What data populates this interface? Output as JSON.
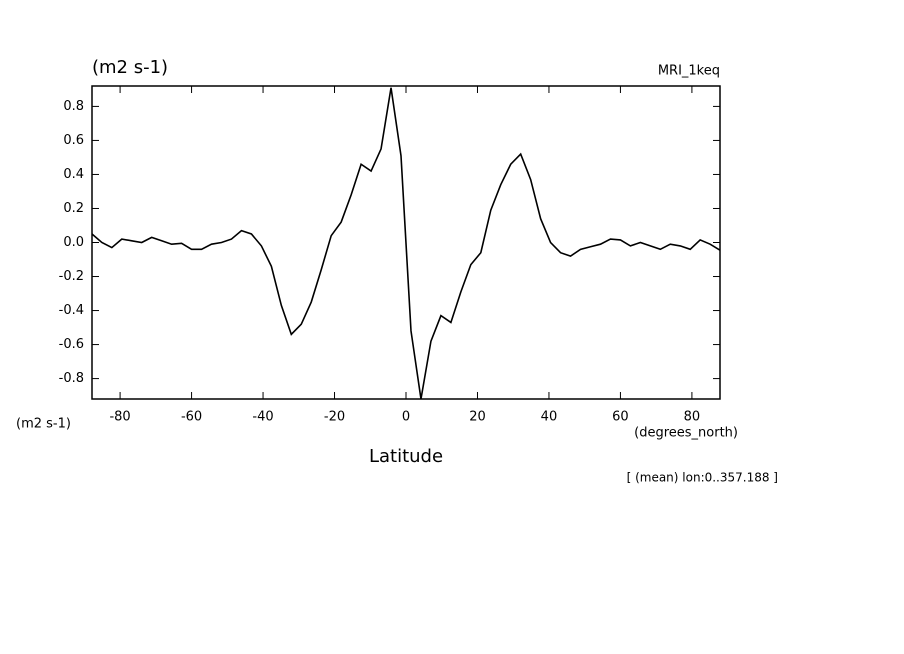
{
  "chart_data": {
    "type": "line",
    "title": "(m2 s-1)",
    "subtitle": "MRI_1keq",
    "y_unit_label": "(m2 s-1)",
    "x_unit_label": "(degrees_north)",
    "xlabel": "Latitude",
    "annotation": "[ (mean) lon:0..357.188 ]",
    "x": [
      -87.86,
      -85.1,
      -82.31,
      -79.53,
      -76.74,
      -73.95,
      -71.16,
      -68.37,
      -65.58,
      -62.79,
      -60.0,
      -57.21,
      -54.42,
      -51.63,
      -48.84,
      -46.04,
      -43.25,
      -40.46,
      -37.67,
      -34.88,
      -32.09,
      -29.3,
      -26.51,
      -23.72,
      -20.93,
      -18.14,
      -15.35,
      -12.56,
      -9.77,
      -6.98,
      -4.19,
      -1.4,
      1.4,
      4.19,
      6.98,
      9.77,
      12.56,
      15.35,
      18.14,
      20.93,
      23.72,
      26.51,
      29.3,
      32.09,
      34.88,
      37.67,
      40.46,
      43.25,
      46.04,
      48.84,
      51.63,
      54.42,
      57.21,
      60.0,
      62.79,
      65.58,
      68.37,
      71.16,
      73.95,
      76.74,
      79.53,
      82.31,
      85.1,
      87.86
    ],
    "series": [
      {
        "name": "MRI_1keq",
        "color": "#000000",
        "values": [
          0.05,
          0.0,
          -0.03,
          0.02,
          0.01,
          0.0,
          0.03,
          0.01,
          -0.01,
          -0.005,
          -0.04,
          -0.04,
          -0.01,
          0.0,
          0.02,
          0.07,
          0.05,
          -0.02,
          -0.14,
          -0.37,
          -0.54,
          -0.48,
          -0.35,
          -0.16,
          0.04,
          0.12,
          0.28,
          0.46,
          0.42,
          0.55,
          0.91,
          0.51,
          -0.52,
          -0.92,
          -0.58,
          -0.43,
          -0.47,
          -0.29,
          -0.13,
          -0.06,
          0.19,
          0.34,
          0.46,
          0.52,
          0.37,
          0.14,
          0.0,
          -0.06,
          -0.08,
          -0.04,
          -0.025,
          -0.01,
          0.02,
          0.015,
          -0.02,
          0.0,
          -0.02,
          -0.04,
          -0.01,
          -0.02,
          -0.04,
          0.015,
          -0.01,
          -0.045
        ]
      }
    ],
    "xlim": [
      -87.86,
      87.86
    ],
    "ylim": [
      -0.92,
      0.92
    ],
    "xticks": [
      -80,
      -60,
      -40,
      -20,
      0,
      20,
      40,
      60,
      80
    ],
    "yticks": [
      -0.8,
      -0.6,
      -0.4,
      -0.2,
      {
        "value": 0,
        "label": "0.0"
      },
      0.2,
      0.4,
      0.6,
      0.8
    ],
    "grid": false
  }
}
